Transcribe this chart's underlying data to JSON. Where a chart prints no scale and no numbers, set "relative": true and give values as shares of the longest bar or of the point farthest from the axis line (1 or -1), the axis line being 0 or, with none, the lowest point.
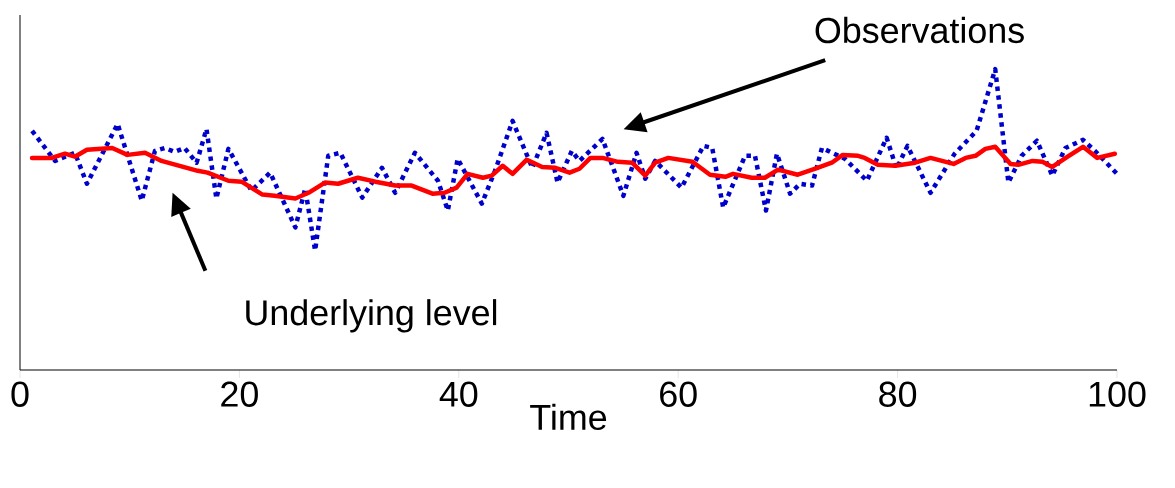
{
  "chart_data": {
    "type": "line",
    "xlabel": "Time",
    "relative": true,
    "xlim": [
      0,
      100
    ],
    "xticks": [
      0,
      20,
      40,
      60,
      80,
      100
    ],
    "grid": false,
    "marker": "none",
    "annotations": [
      "Observations",
      "Underlying level"
    ],
    "series": [
      {
        "color": "#0000cc",
        "line_style": "dotted",
        "x": [
          1.1,
          3.2,
          5,
          6.1,
          8.9,
          11.1,
          12.3,
          13.2,
          14.1,
          15,
          16.1,
          17,
          17.9,
          19,
          21.1,
          22.8,
          25.1,
          26,
          26.9,
          28.1,
          29.2,
          31.2,
          33,
          34.2,
          36,
          38.1,
          39,
          39.9,
          42.1,
          43.3,
          44.9,
          46.7,
          48,
          49,
          50.3,
          51,
          53.1,
          55,
          56.2,
          57,
          57.9,
          60.3,
          62.3,
          63.1,
          64.1,
          66.1,
          67,
          68,
          69,
          70.2,
          71.1,
          72.2,
          73.1,
          75.2,
          77.2,
          79,
          79.9,
          80.9,
          83,
          85.2,
          87.2,
          88.9,
          90.1,
          91.3,
          92.7,
          94.1,
          95.3,
          96.9,
          98,
          100
        ],
        "values": [
          0.795,
          0.695,
          0.722,
          0.619,
          0.818,
          0.563,
          0.728,
          0.738,
          0.725,
          0.738,
          0.689,
          0.801,
          0.57,
          0.735,
          0.596,
          0.656,
          0.474,
          0.603,
          0.397,
          0.712,
          0.722,
          0.573,
          0.672,
          0.589,
          0.722,
          0.629,
          0.53,
          0.702,
          0.553,
          0.662,
          0.828,
          0.672,
          0.788,
          0.623,
          0.728,
          0.695,
          0.768,
          0.579,
          0.722,
          0.636,
          0.695,
          0.606,
          0.745,
          0.738,
          0.54,
          0.712,
          0.712,
          0.53,
          0.719,
          0.586,
          0.619,
          0.613,
          0.738,
          0.702,
          0.629,
          0.772,
          0.669,
          0.745,
          0.589,
          0.719,
          0.795,
          1,
          0.623,
          0.712,
          0.762,
          0.646,
          0.738,
          0.765,
          0.728,
          0.652
        ]
      },
      {
        "color": "#ff0000",
        "line_style": "solid",
        "x": [
          1.1,
          2.9,
          4.1,
          5,
          6.1,
          8.4,
          9.8,
          11.4,
          12.9,
          16.2,
          17.1,
          19,
          20.2,
          22.1,
          23.2,
          25.1,
          26.3,
          27.8,
          29,
          30.8,
          32.4,
          34.2,
          35.7,
          37.6,
          38.7,
          39.8,
          40.8,
          42.2,
          43,
          44,
          44.9,
          46.2,
          47.6,
          48.8,
          50.1,
          51,
          52,
          53.1,
          54.5,
          55.8,
          57,
          57.9,
          59.1,
          61.3,
          62.9,
          64.3,
          65,
          66.7,
          67.9,
          69.1,
          70.9,
          72.5,
          74,
          75,
          76.4,
          77,
          78.2,
          79.8,
          81.6,
          83,
          85.1,
          86.2,
          87.1,
          88,
          88.9,
          90.3,
          91,
          92.3,
          93.2,
          94.1,
          95.5,
          96.9,
          98.2,
          99.8
        ],
        "values": [
          0.705,
          0.705,
          0.719,
          0.709,
          0.732,
          0.738,
          0.715,
          0.722,
          0.695,
          0.662,
          0.656,
          0.629,
          0.626,
          0.583,
          0.579,
          0.57,
          0.589,
          0.623,
          0.619,
          0.639,
          0.626,
          0.613,
          0.613,
          0.586,
          0.589,
          0.606,
          0.652,
          0.639,
          0.646,
          0.679,
          0.652,
          0.699,
          0.675,
          0.672,
          0.656,
          0.669,
          0.705,
          0.705,
          0.692,
          0.689,
          0.646,
          0.689,
          0.705,
          0.692,
          0.649,
          0.642,
          0.652,
          0.639,
          0.639,
          0.666,
          0.649,
          0.669,
          0.689,
          0.715,
          0.712,
          0.705,
          0.682,
          0.679,
          0.689,
          0.705,
          0.685,
          0.705,
          0.712,
          0.735,
          0.742,
          0.685,
          0.682,
          0.695,
          0.692,
          0.675,
          0.709,
          0.742,
          0.705,
          0.719
        ]
      }
    ]
  }
}
